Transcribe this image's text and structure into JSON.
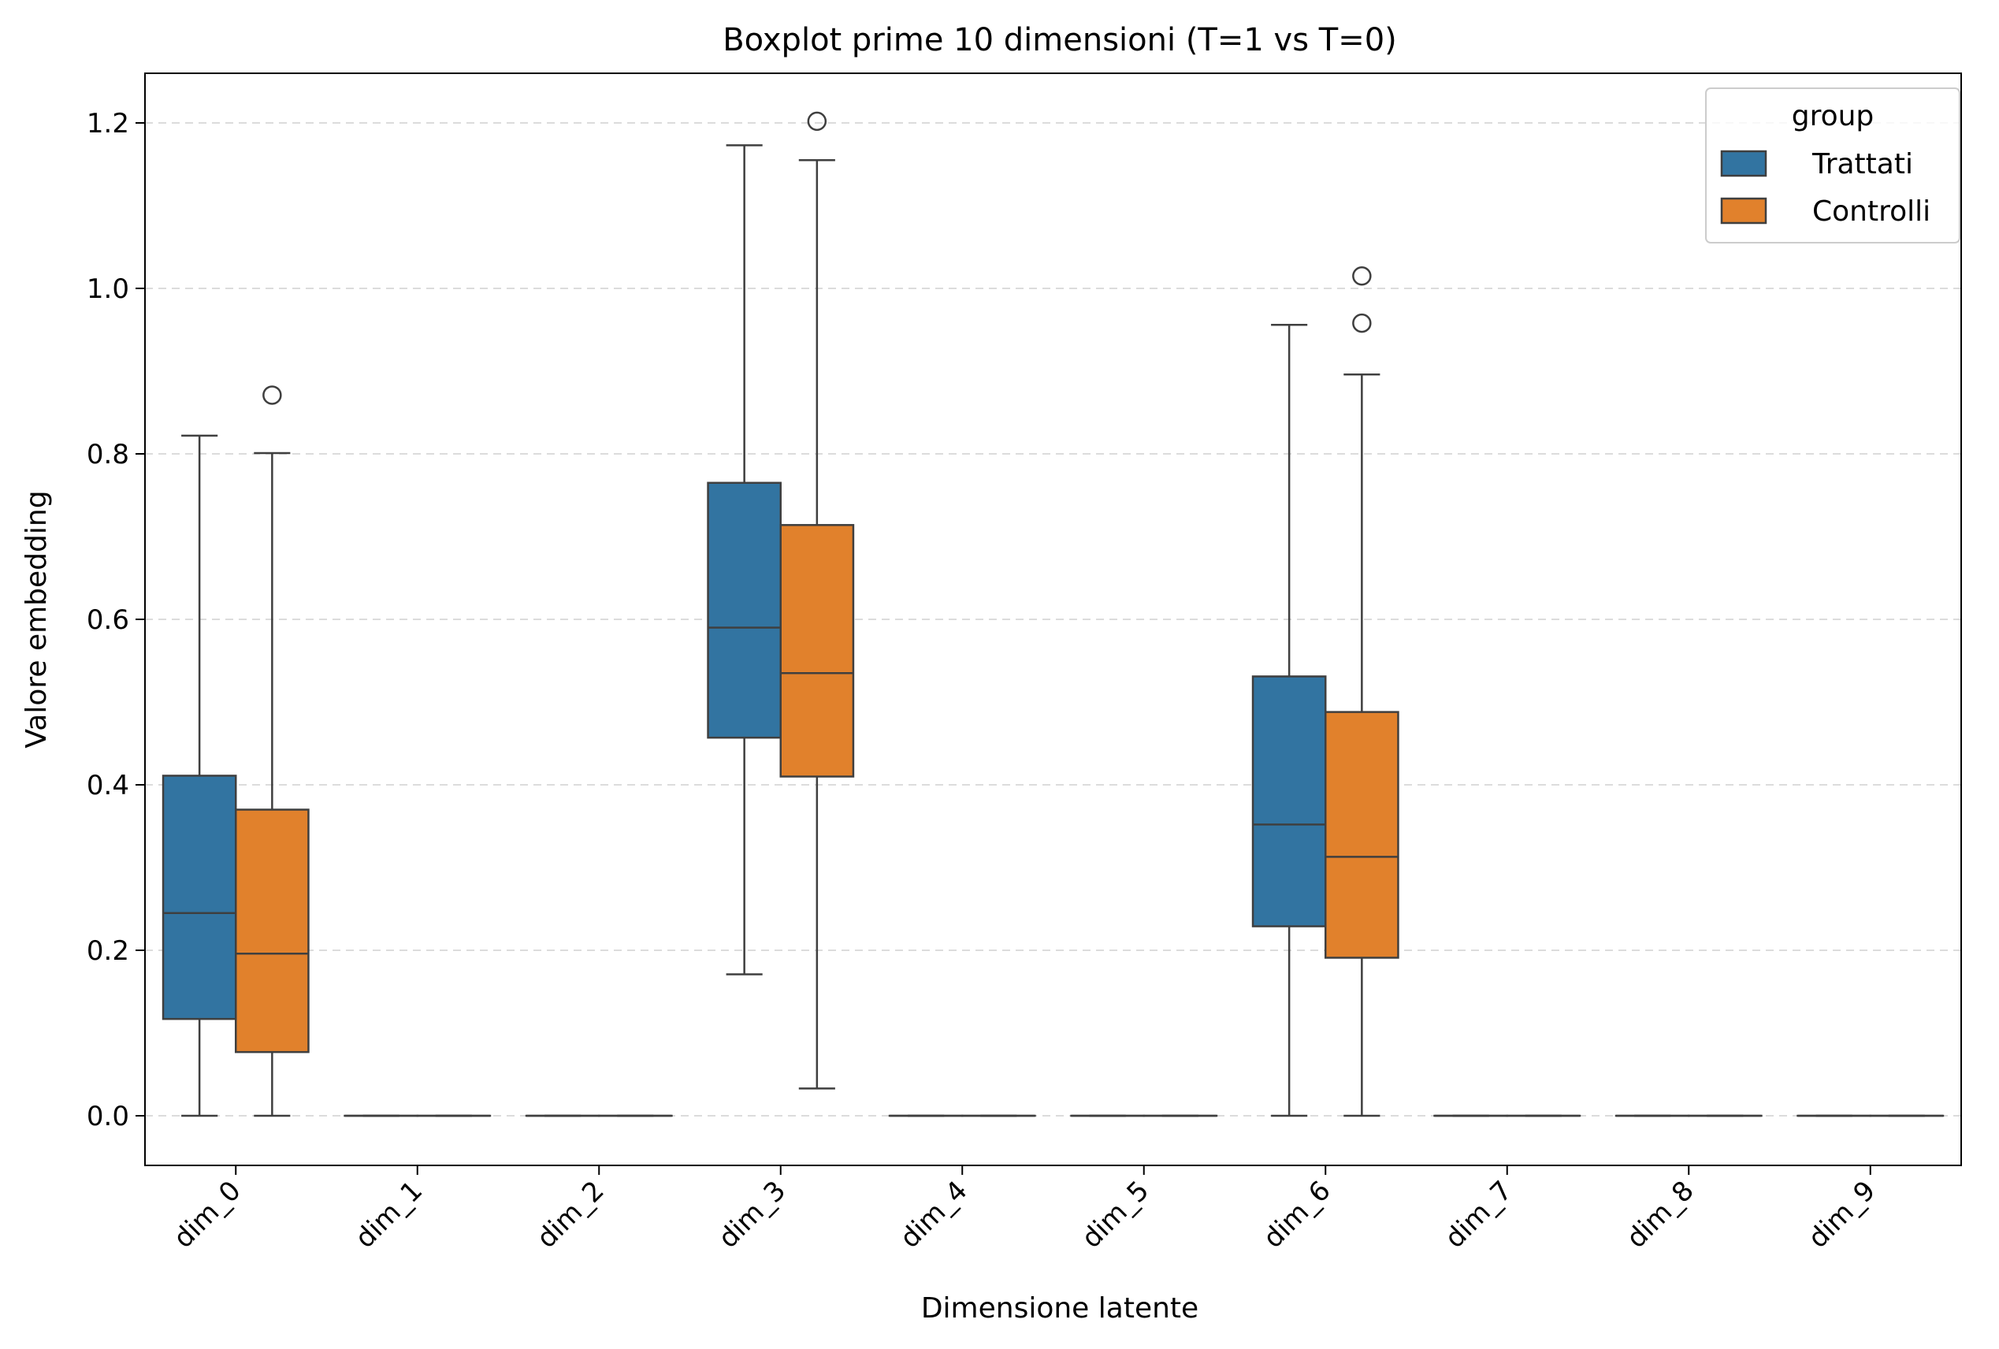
{
  "chart_data": {
    "type": "boxplot",
    "title": "Boxplot prime 10 dimensioni (T=1 vs T=0)",
    "xlabel": "Dimensione latente",
    "ylabel": "Valore embedding",
    "categories": [
      "dim_0",
      "dim_1",
      "dim_2",
      "dim_3",
      "dim_4",
      "dim_5",
      "dim_6",
      "dim_7",
      "dim_8",
      "dim_9"
    ],
    "ylim": [
      -0.06,
      1.26
    ],
    "yticks": [
      0.0,
      0.2,
      0.4,
      0.6,
      0.8,
      1.0,
      1.2
    ],
    "ytick_labels": [
      "0.0",
      "0.2",
      "0.4",
      "0.6",
      "0.8",
      "1.0",
      "1.2"
    ],
    "grid": "y dashed",
    "legend": {
      "title": "group",
      "position": "top-right"
    },
    "series": [
      {
        "name": "Trattati",
        "color": "#3274a1",
        "boxes": [
          {
            "whislo": 0.0,
            "q1": 0.117,
            "med": 0.245,
            "q3": 0.411,
            "whishi": 0.822,
            "fliers": []
          },
          {
            "whislo": 0.0,
            "q1": 0.0,
            "med": 0.0,
            "q3": 0.0,
            "whishi": 0.0,
            "fliers": []
          },
          {
            "whislo": 0.0,
            "q1": 0.0,
            "med": 0.0,
            "q3": 0.0,
            "whishi": 0.0,
            "fliers": []
          },
          {
            "whislo": 0.171,
            "q1": 0.457,
            "med": 0.59,
            "q3": 0.765,
            "whishi": 1.173,
            "fliers": []
          },
          {
            "whislo": 0.0,
            "q1": 0.0,
            "med": 0.0,
            "q3": 0.0,
            "whishi": 0.0,
            "fliers": []
          },
          {
            "whislo": 0.0,
            "q1": 0.0,
            "med": 0.0,
            "q3": 0.0,
            "whishi": 0.0,
            "fliers": []
          },
          {
            "whislo": 0.0,
            "q1": 0.229,
            "med": 0.352,
            "q3": 0.531,
            "whishi": 0.956,
            "fliers": []
          },
          {
            "whislo": 0.0,
            "q1": 0.0,
            "med": 0.0,
            "q3": 0.0,
            "whishi": 0.0,
            "fliers": []
          },
          {
            "whislo": 0.0,
            "q1": 0.0,
            "med": 0.0,
            "q3": 0.0,
            "whishi": 0.0,
            "fliers": []
          },
          {
            "whislo": 0.0,
            "q1": 0.0,
            "med": 0.0,
            "q3": 0.0,
            "whishi": 0.0,
            "fliers": []
          }
        ]
      },
      {
        "name": "Controlli",
        "color": "#e1812c",
        "boxes": [
          {
            "whislo": 0.0,
            "q1": 0.077,
            "med": 0.196,
            "q3": 0.37,
            "whishi": 0.801,
            "fliers": [
              0.871
            ]
          },
          {
            "whislo": 0.0,
            "q1": 0.0,
            "med": 0.0,
            "q3": 0.0,
            "whishi": 0.0,
            "fliers": []
          },
          {
            "whislo": 0.0,
            "q1": 0.0,
            "med": 0.0,
            "q3": 0.0,
            "whishi": 0.0,
            "fliers": []
          },
          {
            "whislo": 0.033,
            "q1": 0.41,
            "med": 0.535,
            "q3": 0.714,
            "whishi": 1.155,
            "fliers": [
              1.202
            ]
          },
          {
            "whislo": 0.0,
            "q1": 0.0,
            "med": 0.0,
            "q3": 0.0,
            "whishi": 0.0,
            "fliers": []
          },
          {
            "whislo": 0.0,
            "q1": 0.0,
            "med": 0.0,
            "q3": 0.0,
            "whishi": 0.0,
            "fliers": []
          },
          {
            "whislo": 0.0,
            "q1": 0.191,
            "med": 0.313,
            "q3": 0.488,
            "whishi": 0.896,
            "fliers": [
              0.958,
              1.015
            ]
          },
          {
            "whislo": 0.0,
            "q1": 0.0,
            "med": 0.0,
            "q3": 0.0,
            "whishi": 0.0,
            "fliers": []
          },
          {
            "whislo": 0.0,
            "q1": 0.0,
            "med": 0.0,
            "q3": 0.0,
            "whishi": 0.0,
            "fliers": []
          },
          {
            "whislo": 0.0,
            "q1": 0.0,
            "med": 0.0,
            "q3": 0.0,
            "whishi": 0.0,
            "fliers": []
          }
        ]
      }
    ]
  }
}
